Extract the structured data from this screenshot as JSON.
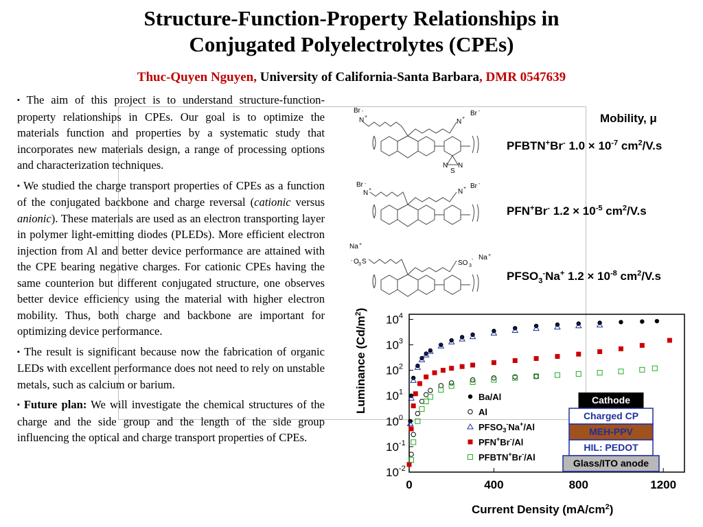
{
  "header": {
    "title_line1": "Structure-Function-Property Relationships in",
    "title_line2": "Conjugated Polyelectrolytes (CPEs)",
    "author_name": "Thuc-Quyen Nguyen,",
    "affiliation": " University of California-Santa Barbara",
    "grant": ", DMR 0547639"
  },
  "body": {
    "p1": "The aim of this project is to understand structure-function-property relationships in CPEs. Our goal is to optimize the materials function and properties by a systematic study that incorporates new materials design, a range of processing options and characterization techniques.",
    "p2_a": "We studied the charge transport properties of CPEs as a function of the conjugated backbone and charge reversal (",
    "p2_cationic": "cationic",
    "p2_versus": " versus ",
    "p2_anionic": "anionic",
    "p2_b": "). These materials are used as an electron transporting layer in polymer light-emitting diodes (PLEDs). More efficient electron injection from Al and better device performance are attained with the CPE bearing negative charges. For cationic CPEs having the same counterion but different conjugated structure, one observes better device efficiency using the material with higher electron mobility. Thus, both charge and backbone are important for optimizing device performance.",
    "p3": "The result is significant because now the fabrication of organic LEDs with excellent performance does not need to rely on unstable metals, such as calcium or barium.",
    "p4_label": "Future plan:",
    "p4": " We will investigate the chemical structures of the charge and the side group and the length of the side group influencing the optical and charge transport properties of CPEs.",
    "bullet": "▪"
  },
  "mobility": {
    "heading": "Mobility, μ",
    "rows": [
      {
        "a": "PFBTN",
        "b": "+",
        "c": "Br",
        "d": "-",
        "e": " 1.0 × 10",
        "f": "-7",
        "g": " cm",
        "h": "2",
        "i": "/V.s"
      },
      {
        "a": "PFN",
        "b": "+",
        "c": "Br",
        "d": "-",
        "e": " 1.2 × 10",
        "f": "-5",
        "g": " cm",
        "h": "2",
        "i": "/V.s"
      },
      {
        "a": "PFSO",
        "sub": "3",
        "b": "-",
        "c": "Na",
        "d": "+",
        "e": " 1.2 × 10",
        "f": "-8",
        "g": " cm",
        "h": "2",
        "i": "/V.s"
      }
    ]
  },
  "structures": {
    "s1": {
      "br_left": "Br",
      "br_right": "Br",
      "n_left": "N",
      "n_right": "N",
      "bt_n1": "N",
      "bt_s": "S",
      "bt_n2": "N",
      "plus": "+",
      "minus": "-"
    },
    "s2": {
      "br_left": "Br",
      "br_right": "Br",
      "n_left": "N",
      "n_right": "N",
      "plus": "+",
      "minus": "-"
    },
    "s3": {
      "na_left": "Na",
      "na_right": "Na",
      "so3_left": "O",
      "so3_left_s": "S",
      "so3_right": "SO",
      "plus": "+",
      "minus": "-",
      "three": "3"
    }
  },
  "device_stack": {
    "layers": [
      {
        "label": "Cathode",
        "bg": "#000000",
        "fg": "#ffffff"
      },
      {
        "label": "Charged CP",
        "bg": "#ffffff",
        "fg": "#1f2f9e"
      },
      {
        "label": "MEH-PPV",
        "bg": "#a0521d",
        "fg": "#1f2f9e"
      },
      {
        "label": "HIL: PEDOT",
        "bg": "#ffffff",
        "fg": "#1f2f9e"
      },
      {
        "label": "Glass/ITO anode",
        "bg": "#b8b8b8",
        "fg": "#000000"
      }
    ]
  },
  "chart_data": {
    "type": "scatter",
    "xlabel": "Current Density (mA/cm",
    "xlabel_sup": "2",
    "xlabel_end": ")",
    "ylabel": "Luminance (Cd/m",
    "ylabel_sup": "2",
    "ylabel_end": ")",
    "xlim": [
      0,
      1300
    ],
    "ylim_log10": [
      -2,
      4.2
    ],
    "y_scale": "log",
    "x_ticks": [
      "0",
      "400",
      "800",
      "1200"
    ],
    "x_tick_values": [
      0,
      400,
      800,
      1200
    ],
    "y_tick_exponents": [
      4,
      3,
      2,
      1,
      0,
      -1,
      -2
    ],
    "y_tick_base": "10",
    "y_tick_sups": [
      "4",
      "3",
      "2",
      "1",
      "0",
      "-1",
      "-2"
    ],
    "legend_position": "lower-center",
    "legend": [
      {
        "name_main": "Ba/Al",
        "color": "#000000",
        "marker": "filled-circle"
      },
      {
        "name_main": "Al",
        "color": "#000000",
        "marker": "open-circle"
      },
      {
        "name_main": "PFSO",
        "name_sub": "3",
        "name_sup": "-",
        "name_rest": "Na",
        "name_sup2": "+",
        "name_end": "/Al",
        "color": "#1f2f9e",
        "marker": "open-triangle"
      },
      {
        "name_main": "PFN",
        "name_sup": "+",
        "name_rest": "Br",
        "name_sup2": "-",
        "name_end": "/Al",
        "color": "#cc0000",
        "marker": "filled-square"
      },
      {
        "name_main": "PFBTN",
        "name_sup": "+",
        "name_rest": "Br",
        "name_sup2": "-",
        "name_end": "/Al",
        "color": "#22aa22",
        "marker": "open-square"
      }
    ],
    "series": [
      {
        "name": "Ba/Al",
        "x": [
          0,
          5,
          10,
          20,
          40,
          60,
          80,
          100,
          150,
          200,
          250,
          300,
          400,
          500,
          600,
          700,
          800,
          900,
          1000,
          1100,
          1170
        ],
        "y": [
          0.01,
          1,
          10,
          50,
          150,
          300,
          450,
          600,
          1000,
          1500,
          2000,
          2500,
          3500,
          4500,
          5500,
          6200,
          6800,
          7300,
          7800,
          8200,
          8500
        ]
      },
      {
        "name": "PFSO3-Na+/Al",
        "x": [
          0,
          5,
          10,
          20,
          40,
          60,
          80,
          100,
          150,
          200,
          250,
          300,
          400,
          500,
          600,
          700,
          800,
          900
        ],
        "y": [
          0.01,
          0.8,
          8,
          40,
          130,
          260,
          400,
          550,
          900,
          1300,
          1700,
          2100,
          2900,
          3700,
          4400,
          5000,
          5600,
          6000
        ]
      },
      {
        "name": "PFN+Br-/Al",
        "x": [
          0,
          10,
          20,
          30,
          50,
          80,
          120,
          160,
          200,
          250,
          300,
          400,
          500,
          600,
          700,
          800,
          900,
          1000,
          1100,
          1230
        ],
        "y": [
          0.02,
          0.5,
          4,
          12,
          30,
          55,
          80,
          100,
          120,
          140,
          160,
          200,
          240,
          290,
          350,
          430,
          540,
          700,
          950,
          1500
        ]
      },
      {
        "name": "Al",
        "x": [
          0,
          10,
          20,
          40,
          60,
          80,
          100,
          150,
          200,
          300,
          400,
          500,
          600
        ],
        "y": [
          0.01,
          0.05,
          0.3,
          2,
          6,
          11,
          16,
          25,
          32,
          42,
          50,
          55,
          58
        ]
      },
      {
        "name": "PFBTN+Br-/Al",
        "x": [
          0,
          10,
          20,
          40,
          60,
          80,
          100,
          150,
          200,
          300,
          400,
          500,
          600,
          700,
          800,
          900,
          1000,
          1100,
          1160
        ],
        "y": [
          0.01,
          0.03,
          0.15,
          1,
          3,
          6,
          9,
          17,
          24,
          34,
          42,
          50,
          58,
          65,
          72,
          80,
          90,
          105,
          120
        ]
      }
    ]
  }
}
